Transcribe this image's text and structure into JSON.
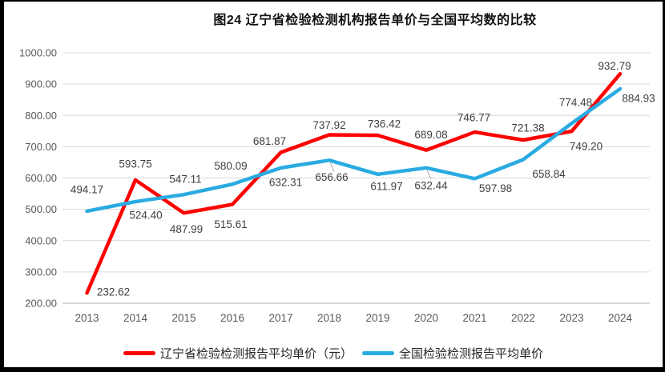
{
  "page": {
    "background": "#ffffff",
    "frame_color": "#000000"
  },
  "chart_data": {
    "type": "line",
    "title": "图24 辽宁省检验检测机构报告单价与全国平均数的比较",
    "categories": [
      "2013",
      "2014",
      "2015",
      "2016",
      "2017",
      "2018",
      "2019",
      "2020",
      "2021",
      "2022",
      "2023",
      "2024"
    ],
    "series": [
      {
        "name": "辽宁省检验检测报告平均单价（元）",
        "color": "#FF0000",
        "values": [
          232.62,
          593.75,
          487.99,
          515.61,
          681.87,
          737.92,
          736.42,
          689.08,
          746.77,
          721.38,
          749.2,
          932.79
        ]
      },
      {
        "name": "全国检验检测报告平均单价",
        "color": "#29ABE2",
        "values": [
          494.17,
          524.4,
          547.11,
          580.09,
          632.31,
          656.66,
          611.97,
          632.44,
          597.98,
          658.84,
          774.48,
          884.93
        ]
      }
    ],
    "ylim": [
      200,
      1000
    ],
    "ytick_step": 100,
    "ytick_labels": [
      "200.00",
      "300.00",
      "400.00",
      "500.00",
      "600.00",
      "700.00",
      "800.00",
      "900.00",
      "1000.00"
    ],
    "data_labels": true,
    "data_label_decimals": 2,
    "grid": true,
    "legend_position": "bottom",
    "colors": {
      "gridline": "#D9D9D9",
      "axis_line": "#BFBFBF",
      "axis_label": "#595959",
      "data_label": "#404040",
      "leader_line": "#A6A6A6"
    }
  }
}
